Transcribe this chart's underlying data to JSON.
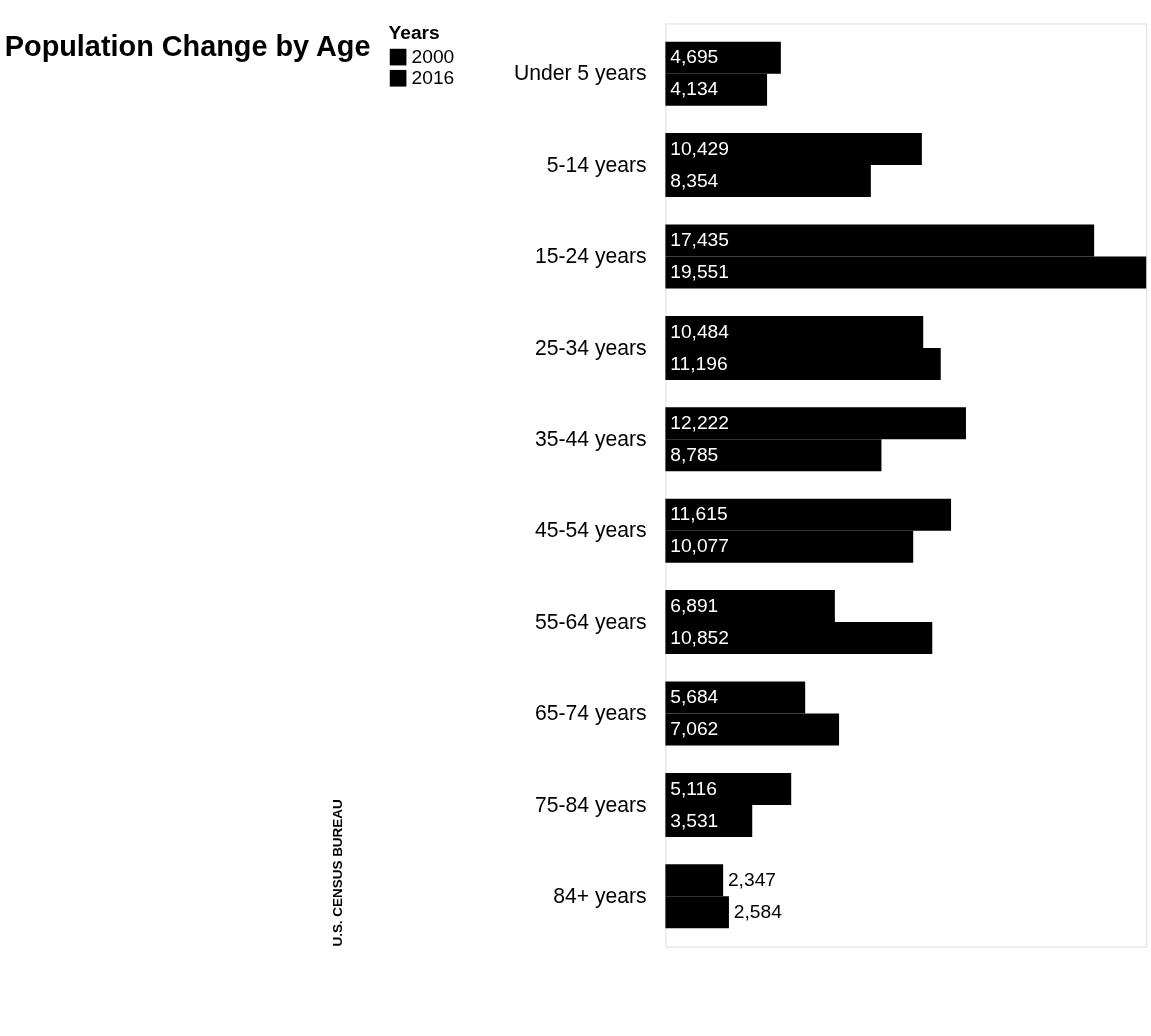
{
  "chart_data": {
    "type": "bar",
    "orientation": "horizontal",
    "title": "Population Change by Age",
    "legend_title": "Years",
    "legend": "left",
    "grid": false,
    "categories": [
      "Under 5 years",
      "5-14 years",
      "15-24 years",
      "25-34 years",
      "35-44 years",
      "45-54 years",
      "55-64 years",
      "65-74 years",
      "75-84 years",
      "84+ years"
    ],
    "series": [
      {
        "name": "2000",
        "color": "#000000",
        "values": [
          4695,
          10429,
          17435,
          10484,
          12222,
          11615,
          6891,
          5684,
          5116,
          2347
        ],
        "value_labels": [
          "4,695",
          "10,429",
          "17,435",
          "10,484",
          "12,222",
          "11,615",
          "6,891",
          "5,684",
          "5,116",
          "2,347"
        ]
      },
      {
        "name": "2016",
        "color": "#000000",
        "values": [
          4134,
          8354,
          19551,
          11196,
          8785,
          10077,
          10852,
          7062,
          3531,
          2584
        ],
        "value_labels": [
          "4,134",
          "8,354",
          "19,551",
          "11,196",
          "8,785",
          "10,077",
          "10,852",
          "7,062",
          "3,531",
          "2,584"
        ]
      }
    ],
    "annotations": [
      "U.S. CENSUS BUREAU"
    ]
  }
}
